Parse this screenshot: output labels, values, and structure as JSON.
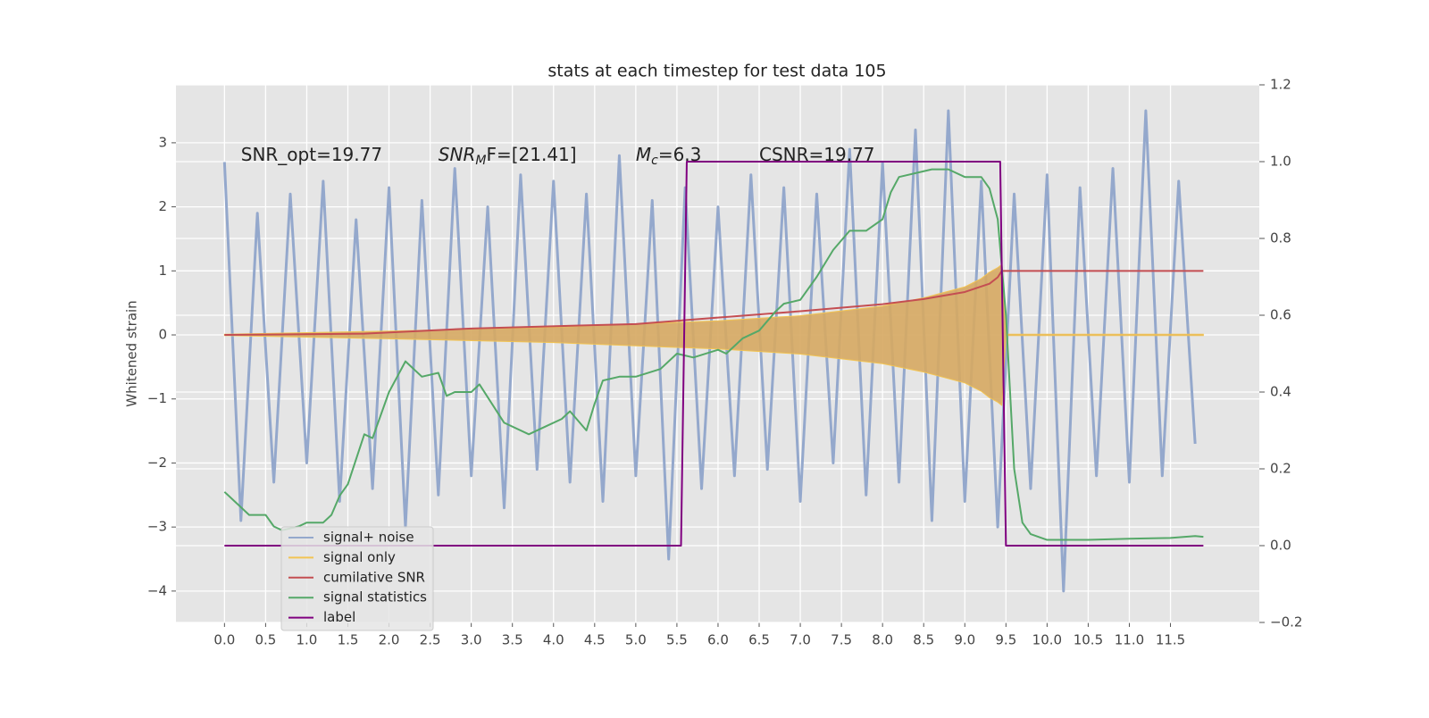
{
  "chart_data": {
    "type": "line",
    "title": "stats at each timestep for test data 105",
    "ylabel": "Whitened strain",
    "grid": true,
    "legend_position": "lower left",
    "xlim": [
      -0.59,
      12.58
    ],
    "ylim": [
      -4.49,
      3.905
    ],
    "y2lim": [
      -0.2,
      1.2
    ],
    "xticks": [
      {
        "value": 0,
        "label": "0.0"
      },
      0.5,
      {
        "value": 1,
        "label": "1.0"
      },
      1.5,
      {
        "value": 2,
        "label": "2.0"
      },
      2.5,
      {
        "value": 3,
        "label": "3.0"
      },
      3.5,
      {
        "value": 4,
        "label": "4.0"
      },
      4.5,
      {
        "value": 5,
        "label": "5.0"
      },
      5.5,
      {
        "value": 6,
        "label": "6.0"
      },
      6.5,
      {
        "value": 7,
        "label": "7.0"
      },
      7.5,
      {
        "value": 8,
        "label": "8.0"
      },
      8.5,
      {
        "value": 9,
        "label": "9.0"
      },
      9.5,
      {
        "value": 10,
        "label": "10.0"
      },
      10.5,
      {
        "value": 11,
        "label": "11.0"
      },
      11.5
    ],
    "yticks": [
      {
        "value": -4,
        "label": "−4"
      },
      {
        "value": -3,
        "label": "−3"
      },
      {
        "value": -2,
        "label": "−2"
      },
      {
        "value": -1,
        "label": "−1"
      },
      0,
      1,
      2,
      3
    ],
    "y2ticks": [
      {
        "value": -0.2,
        "label": "−0.2"
      },
      {
        "value": 0,
        "label": "0.0"
      },
      0.2,
      0.4,
      0.6,
      0.8,
      {
        "value": 1,
        "label": "1.0"
      },
      {
        "value": 1.2,
        "label": "1.2"
      }
    ],
    "annotations": [
      {
        "x": 0.2,
        "y": 2.8,
        "base": "SNR_opt=19.77"
      },
      {
        "x": 2.6,
        "y": 2.8,
        "base": "SNR",
        "sub": "M",
        "rest": "F=[21.41]"
      },
      {
        "x": 5.0,
        "y": 2.8,
        "base": "M",
        "sub": "c",
        "rest": "=6.3"
      },
      {
        "x": 6.5,
        "y": 2.8,
        "base": "CSNR=19.77"
      }
    ],
    "series": [
      {
        "name": "signal+ noise",
        "color": "#94a8cc",
        "style": "line",
        "x": [
          0,
          0.2,
          0.4,
          0.6,
          0.8,
          1,
          1.2,
          1.4,
          1.6,
          1.8,
          2,
          2.2,
          2.4,
          2.6,
          2.8,
          3,
          3.2,
          3.4,
          3.6,
          3.8,
          4,
          4.2,
          4.4,
          4.6,
          4.8,
          5,
          5.2,
          5.4,
          5.6,
          5.8,
          6,
          6.2,
          6.4,
          6.6,
          6.8,
          7,
          7.2,
          7.4,
          7.6,
          7.8,
          8,
          8.2,
          8.4,
          8.6,
          8.8,
          9,
          9.2,
          9.4,
          9.6,
          9.8,
          10,
          10.2,
          10.4,
          10.6,
          10.8,
          11,
          11.2,
          11.4,
          11.6,
          11.8
        ],
        "values": [
          2.7,
          -2.9,
          1.9,
          -2.3,
          2.2,
          -2.0,
          2.4,
          -2.6,
          1.8,
          -2.4,
          2.3,
          -3.0,
          2.1,
          -2.5,
          2.6,
          -2.2,
          2.0,
          -2.7,
          2.5,
          -2.1,
          2.4,
          -2.3,
          2.2,
          -2.6,
          2.8,
          -2.2,
          2.1,
          -3.5,
          2.3,
          -2.4,
          2.0,
          -2.2,
          2.5,
          -2.1,
          2.3,
          -2.6,
          2.2,
          -2.0,
          2.9,
          -2.5,
          2.7,
          -2.3,
          3.2,
          -2.9,
          3.5,
          -2.6,
          2.4,
          -3.0,
          2.2,
          -2.4,
          2.5,
          -4.0,
          2.3,
          -2.2,
          2.6,
          -2.3,
          3.5,
          -2.2,
          2.4,
          -1.7
        ]
      },
      {
        "name": "signal only",
        "color": "#f2c453",
        "fill": "#d6a862",
        "style": "area",
        "x": [
          0,
          2,
          4,
          6,
          7,
          8,
          8.5,
          9,
          9.2,
          9.3,
          9.4,
          9.45,
          9.5,
          11.9
        ],
        "values": [
          0.01,
          0.06,
          0.12,
          0.22,
          0.3,
          0.45,
          0.58,
          0.75,
          0.88,
          0.98,
          1.05,
          1.1,
          0.01,
          0.01
        ],
        "lower": [
          -0.01,
          -0.06,
          -0.12,
          -0.22,
          -0.3,
          -0.45,
          -0.58,
          -0.75,
          -0.88,
          -0.98,
          -1.05,
          -1.1,
          -0.01,
          -0.01
        ]
      },
      {
        "name": "cumilative SNR",
        "color": "#c44e52",
        "style": "line",
        "x": [
          0,
          1.7,
          3,
          5,
          6,
          7,
          8,
          8.5,
          9,
          9.3,
          9.4,
          9.45,
          11.9
        ],
        "values": [
          0,
          0.02,
          0.1,
          0.17,
          0.27,
          0.37,
          0.48,
          0.56,
          0.67,
          0.8,
          0.9,
          1.0,
          1.0
        ]
      },
      {
        "name": "signal statistics",
        "color": "#55a868",
        "style": "line",
        "axis": "y2",
        "x": [
          0,
          0.2,
          0.3,
          0.5,
          0.6,
          0.7,
          0.9,
          1,
          1.2,
          1.3,
          1.4,
          1.5,
          1.7,
          1.8,
          2,
          2.1,
          2.2,
          2.4,
          2.6,
          2.7,
          2.8,
          3,
          3.1,
          3.4,
          3.7,
          3.9,
          4.1,
          4.2,
          4.4,
          4.5,
          4.6,
          4.8,
          5,
          5.3,
          5.5,
          5.7,
          6,
          6.1,
          6.3,
          6.5,
          6.7,
          6.8,
          7,
          7.2,
          7.4,
          7.6,
          7.8,
          8,
          8.1,
          8.2,
          8.4,
          8.6,
          8.8,
          9,
          9.2,
          9.3,
          9.4,
          9.5,
          9.6,
          9.7,
          9.8,
          10,
          10.5,
          11,
          11.5,
          11.8,
          11.9
        ],
        "values": [
          0.14,
          0.1,
          0.08,
          0.08,
          0.05,
          0.04,
          0.05,
          0.06,
          0.06,
          0.08,
          0.13,
          0.16,
          0.29,
          0.28,
          0.4,
          0.44,
          0.48,
          0.44,
          0.45,
          0.39,
          0.4,
          0.4,
          0.42,
          0.32,
          0.29,
          0.31,
          0.33,
          0.35,
          0.3,
          0.37,
          0.43,
          0.44,
          0.44,
          0.46,
          0.5,
          0.49,
          0.51,
          0.5,
          0.54,
          0.56,
          0.61,
          0.63,
          0.64,
          0.7,
          0.77,
          0.82,
          0.82,
          0.85,
          0.92,
          0.96,
          0.97,
          0.98,
          0.98,
          0.96,
          0.96,
          0.93,
          0.85,
          0.6,
          0.2,
          0.06,
          0.03,
          0.015,
          0.015,
          0.018,
          0.02,
          0.025,
          0.023
        ]
      },
      {
        "name": "label",
        "color": "#800080",
        "style": "line",
        "axis": "y2",
        "x": [
          0,
          5.55,
          5.62,
          9.43,
          9.5,
          11.9
        ],
        "values": [
          0,
          0,
          1,
          1,
          0,
          0
        ]
      }
    ]
  }
}
